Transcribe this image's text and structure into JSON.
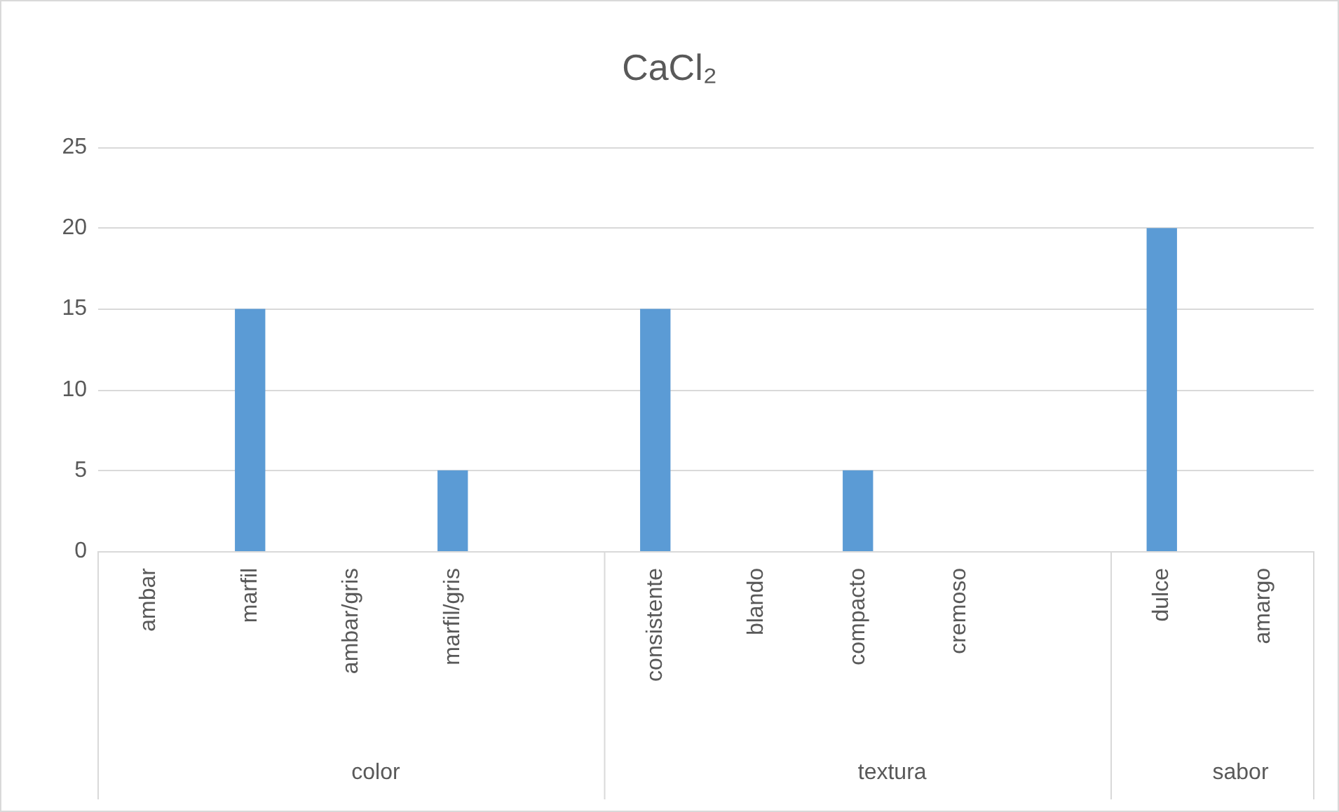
{
  "chart_data": {
    "type": "bar",
    "title": "CaCl₂",
    "categories": [
      "ambar",
      "marfil",
      "ambar/gris",
      "marfil/gris",
      null,
      "consistente",
      "blando",
      "compacto",
      "cremoso",
      null,
      "dulce",
      "amargo"
    ],
    "values": [
      0,
      15,
      0,
      5,
      null,
      15,
      0,
      5,
      0,
      null,
      20,
      0
    ],
    "color": "#5b9bd5",
    "ylim": [
      0,
      25
    ],
    "yticks": [
      0,
      5,
      10,
      15,
      20,
      25
    ],
    "grid": "y",
    "annotations": [
      "color",
      "textura",
      "sabor"
    ]
  }
}
